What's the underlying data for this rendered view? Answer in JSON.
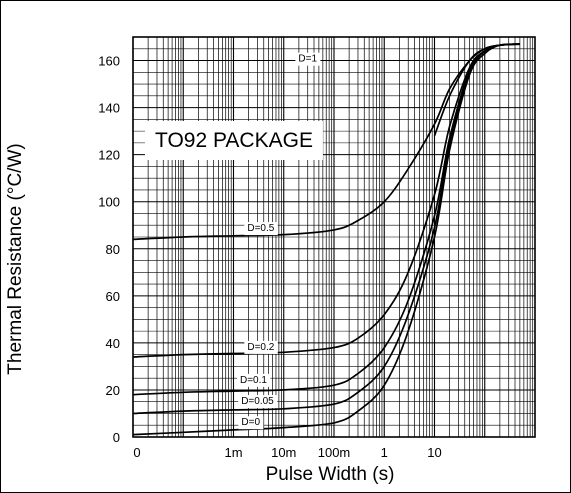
{
  "chart_data": {
    "type": "line",
    "title": "",
    "annotation": "TO92 PACKAGE",
    "xlabel": "Pulse Width (s)",
    "ylabel": "Thermal Resistance (°C/W)",
    "xscale": "log",
    "xlim": [
      1e-05,
      1000
    ],
    "ylim": [
      0,
      170
    ],
    "grid": true,
    "x_ticks": [
      {
        "value": 1e-05,
        "label": "0"
      },
      {
        "value": 0.001,
        "label": "1m"
      },
      {
        "value": 0.01,
        "label": "10m"
      },
      {
        "value": 0.1,
        "label": "100m"
      },
      {
        "value": 1,
        "label": "1"
      },
      {
        "value": 10,
        "label": "10"
      }
    ],
    "y_ticks": [
      0,
      20,
      40,
      60,
      80,
      100,
      120,
      140,
      160
    ],
    "series": [
      {
        "name": "D=1",
        "color": "#000000",
        "points": [
          [
            10,
            128
          ],
          [
            20,
            145
          ],
          [
            50,
            160
          ],
          [
            100,
            165
          ],
          [
            200,
            166.5
          ],
          [
            500,
            167
          ]
        ]
      },
      {
        "name": "D=0.5",
        "color": "#000000",
        "points": [
          [
            1e-05,
            84
          ],
          [
            0.0001,
            85
          ],
          [
            0.001,
            85.5
          ],
          [
            0.01,
            86
          ],
          [
            0.1,
            88
          ],
          [
            0.3,
            92
          ],
          [
            1,
            100
          ],
          [
            3,
            114
          ],
          [
            10,
            133
          ],
          [
            20,
            148
          ],
          [
            50,
            160
          ],
          [
            100,
            165
          ],
          [
            200,
            166.5
          ],
          [
            500,
            167
          ]
        ]
      },
      {
        "name": "D=0.2",
        "color": "#000000",
        "points": [
          [
            1e-05,
            34
          ],
          [
            0.0001,
            35
          ],
          [
            0.001,
            35.5
          ],
          [
            0.01,
            36
          ],
          [
            0.1,
            38
          ],
          [
            0.3,
            42
          ],
          [
            1,
            52
          ],
          [
            3,
            70
          ],
          [
            10,
            103
          ],
          [
            20,
            132
          ],
          [
            50,
            157
          ],
          [
            100,
            164
          ],
          [
            200,
            166.5
          ],
          [
            500,
            167
          ]
        ]
      },
      {
        "name": "D=0.1",
        "color": "#000000",
        "points": [
          [
            1e-05,
            18
          ],
          [
            0.0001,
            19
          ],
          [
            0.001,
            19.5
          ],
          [
            0.01,
            20
          ],
          [
            0.1,
            22
          ],
          [
            0.3,
            27
          ],
          [
            1,
            38
          ],
          [
            3,
            58
          ],
          [
            10,
            94
          ],
          [
            20,
            127
          ],
          [
            50,
            156
          ],
          [
            100,
            164
          ],
          [
            200,
            166.5
          ],
          [
            500,
            167
          ]
        ]
      },
      {
        "name": "D=0.05",
        "color": "#000000",
        "points": [
          [
            1e-05,
            10
          ],
          [
            0.0001,
            11
          ],
          [
            0.001,
            11.5
          ],
          [
            0.01,
            12
          ],
          [
            0.1,
            14
          ],
          [
            0.3,
            19
          ],
          [
            1,
            30
          ],
          [
            3,
            52
          ],
          [
            10,
            89
          ],
          [
            20,
            125
          ],
          [
            50,
            155
          ],
          [
            100,
            164
          ],
          [
            200,
            166.5
          ],
          [
            500,
            167
          ]
        ]
      },
      {
        "name": "D=0",
        "color": "#000000",
        "points": [
          [
            1e-05,
            1
          ],
          [
            0.0001,
            2
          ],
          [
            0.001,
            3
          ],
          [
            0.01,
            4
          ],
          [
            0.1,
            6
          ],
          [
            0.3,
            11
          ],
          [
            1,
            22
          ],
          [
            3,
            45
          ],
          [
            10,
            85
          ],
          [
            20,
            122
          ],
          [
            50,
            154
          ],
          [
            100,
            163
          ],
          [
            200,
            166.5
          ],
          [
            500,
            167
          ]
        ]
      }
    ]
  }
}
